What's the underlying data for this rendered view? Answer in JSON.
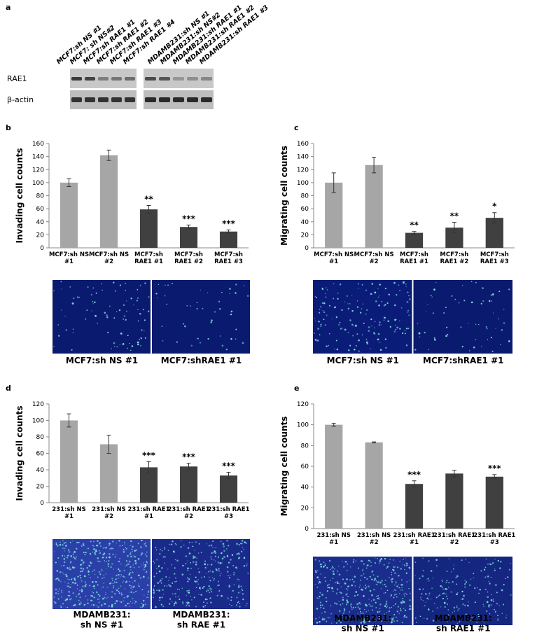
{
  "panel_labels": [
    "a",
    "b",
    "c",
    "d",
    "e"
  ],
  "blot": {
    "lanes": [
      "MCF7:sh NS #1",
      "MCF7: sh NS#2",
      "MCF7:sh RAE1 #1",
      "MCF7:sh RAE1 #2",
      "MCF7:sh RAE1 #3",
      "MCF7:sh RAE1 #4",
      "MDAMB231:sh NS #1",
      "MDAMB231:sh NS#2",
      "MDAMB231:sh RAE1 #1",
      "MDAMB231:sh RAE1 #2",
      "MDAMB231:sh RAE1 #3"
    ],
    "rows": [
      "RAE1",
      "β-actin"
    ]
  },
  "image_captions": [
    [
      "MCF7:sh NS #1",
      "MCF7:shRAE1 #1"
    ],
    [
      "MCF7:sh NS #1",
      "MCF7:shRAE1 #1"
    ],
    [
      "MDAMB231:\nsh NS #1",
      "MDAMB231:\nsh RAE #1"
    ],
    [
      "MDAMB231:\nsh NS #1",
      "MDAMB231:\nsh RAE1 #1"
    ]
  ],
  "chart_data": [
    {
      "type": "bar",
      "y_label": "Invading cell counts",
      "categories": [
        "MCF7:sh NS\n#1",
        "MCF7:sh NS\n#2",
        "MCF7:sh\nRAE1 #1",
        "MCF7:sh\nRAE1 #2",
        "MCF7:sh\nRAE1 #3"
      ],
      "values": [
        100,
        142,
        59,
        32,
        25
      ],
      "errors": [
        6,
        8,
        6,
        3,
        2.5
      ],
      "annotations": [
        null,
        null,
        "**",
        "***",
        "***"
      ],
      "colors": [
        "#a6a6a6",
        "#a6a6a6",
        "#404040",
        "#404040",
        "#404040"
      ],
      "ylim": [
        0,
        160
      ],
      "yticks": [
        0,
        20,
        40,
        60,
        80,
        100,
        120,
        140,
        160
      ]
    },
    {
      "type": "bar",
      "y_label": "Migrating cell counts",
      "categories": [
        "MCF7:sh NS\n#1",
        "MCF7:sh NS\n#2",
        "MCF7:sh\nRAE1 #1",
        "MCF7:sh\nRAE1 #2",
        "MCF7:sh\nRAE1 #3"
      ],
      "values": [
        100,
        127,
        23,
        31,
        46
      ],
      "errors": [
        15,
        12,
        2,
        8,
        8
      ],
      "annotations": [
        null,
        null,
        "**",
        "**",
        "*"
      ],
      "colors": [
        "#a6a6a6",
        "#a6a6a6",
        "#404040",
        "#404040",
        "#404040"
      ],
      "ylim": [
        0,
        160
      ],
      "yticks": [
        0,
        20,
        40,
        60,
        80,
        100,
        120,
        140,
        160
      ]
    },
    {
      "type": "bar",
      "y_label": "Invading cell counts",
      "categories": [
        "231:sh NS\n#1",
        "231:sh NS\n#2",
        "231:sh RAE1\n#1",
        "231:sh RAE1\n#2",
        "231:sh RAE1\n#3"
      ],
      "values": [
        100,
        71,
        43,
        44,
        33
      ],
      "errors": [
        8,
        11,
        7,
        4,
        4
      ],
      "annotations": [
        null,
        null,
        "***",
        "***",
        "***"
      ],
      "colors": [
        "#a6a6a6",
        "#a6a6a6",
        "#404040",
        "#404040",
        "#404040"
      ],
      "ylim": [
        0,
        120
      ],
      "yticks": [
        0,
        20,
        40,
        60,
        80,
        100,
        120
      ]
    },
    {
      "type": "bar",
      "y_label": "Migrating cell counts",
      "categories": [
        "231:sh NS\n#1",
        "231:sh NS\n#2",
        "231:sh RAE1\n#1",
        "231:sh RAE1\n#2",
        "231:sh RAE1\n#3"
      ],
      "values": [
        100,
        83,
        43,
        53,
        50
      ],
      "errors": [
        1.5,
        0.5,
        3,
        3,
        2
      ],
      "annotations": [
        null,
        null,
        "***",
        null,
        "***"
      ],
      "colors": [
        "#a6a6a6",
        "#a6a6a6",
        "#404040",
        "#404040",
        "#404040"
      ],
      "ylim": [
        0,
        120
      ],
      "yticks": [
        0,
        20,
        40,
        60,
        80,
        100,
        120
      ]
    }
  ]
}
